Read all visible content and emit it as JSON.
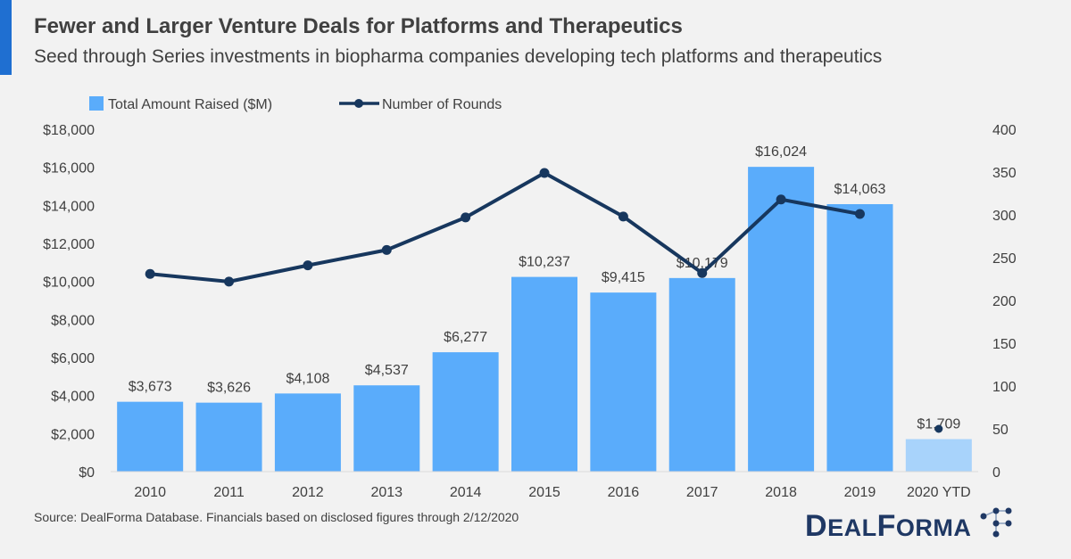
{
  "header": {
    "title": "Fewer and Larger Venture Deals for Platforms and Therapeutics",
    "subtitle": "Seed through Series investments in biopharma companies developing tech platforms and therapeutics"
  },
  "footer": {
    "source": "Source: DealForma Database. Financials based on disclosed figures through 2/12/2020",
    "logo_text": "DealForma"
  },
  "colors": {
    "bar": "#5aacfb",
    "bar_ytd": "#a8d3fb",
    "line": "#17375e",
    "accent": "#1f6fd1"
  },
  "chart_data": {
    "type": "bar",
    "categories": [
      "2010",
      "2011",
      "2012",
      "2013",
      "2014",
      "2015",
      "2016",
      "2017",
      "2018",
      "2019",
      "2020 YTD"
    ],
    "series": [
      {
        "name": "Total Amount Raised ($M)",
        "type": "bar",
        "axis": "left",
        "values": [
          3673,
          3626,
          4108,
          4537,
          6277,
          10237,
          9415,
          10179,
          16024,
          14063,
          1709
        ],
        "labels": [
          "$3,673",
          "$3,626",
          "$4,108",
          "$4,537",
          "$6,277",
          "$10,237",
          "$9,415",
          "$10,179",
          "$16,024",
          "$14,063",
          "$1,709"
        ]
      },
      {
        "name": "Number of Rounds",
        "type": "line",
        "axis": "right",
        "values": [
          231,
          222,
          241,
          259,
          297,
          349,
          298,
          232,
          318,
          301,
          50
        ]
      }
    ],
    "ylim_left": [
      0,
      18000
    ],
    "ylim_right": [
      0,
      400
    ],
    "left_ticks": [
      "$0",
      "$2,000",
      "$4,000",
      "$6,000",
      "$8,000",
      "$10,000",
      "$12,000",
      "$14,000",
      "$16,000",
      "$18,000"
    ],
    "left_tick_values": [
      0,
      2000,
      4000,
      6000,
      8000,
      10000,
      12000,
      14000,
      16000,
      18000
    ],
    "right_ticks": [
      "0",
      "50",
      "100",
      "150",
      "200",
      "250",
      "300",
      "350",
      "400"
    ],
    "right_tick_values": [
      0,
      50,
      100,
      150,
      200,
      250,
      300,
      350,
      400
    ],
    "legend_position": "top-left",
    "grid": false
  }
}
